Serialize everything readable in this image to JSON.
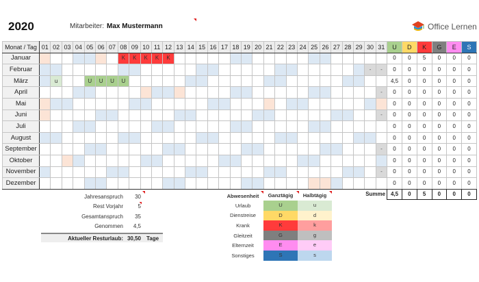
{
  "header": {
    "year": "2020",
    "employee_label": "Mitarbeiter:",
    "employee_name": "Max Mustermann"
  },
  "logo": {
    "name": "Office Lernen",
    "icon": "graduation-cap-icon"
  },
  "colors": {
    "weekend": "#dce8f4",
    "holiday": "#fce4d6",
    "unavailable": "#d9d9d9",
    "U": "#a9d08e",
    "u": "#d9ead3",
    "D": "#ffd966",
    "d": "#fff2cc",
    "K": "#ff3b3b",
    "k": "#ff9e9e",
    "G": "#7f7f7f",
    "g": "#bfbfbf",
    "E": "#ff8cf0",
    "e": "#ffccf7",
    "S": "#2e75b6",
    "s": "#bdd7ee"
  },
  "calendar": {
    "corner_label": "Monat / Tag",
    "days": [
      "01",
      "02",
      "03",
      "04",
      "05",
      "06",
      "07",
      "08",
      "09",
      "10",
      "11",
      "12",
      "13",
      "14",
      "15",
      "16",
      "17",
      "18",
      "19",
      "20",
      "21",
      "22",
      "23",
      "24",
      "25",
      "26",
      "27",
      "28",
      "29",
      "30",
      "31"
    ],
    "summary_headers": [
      "U",
      "D",
      "K",
      "G",
      "E",
      "S"
    ],
    "months": [
      {
        "name": "Januar",
        "weekends": [
          4,
          5,
          11,
          12,
          18,
          19,
          25,
          26
        ],
        "holidays": [
          1,
          6
        ],
        "na": [],
        "entries": {
          "8": "K",
          "9": "K",
          "10": "K",
          "11": "K",
          "12": "K"
        },
        "totals": [
          "0",
          "0",
          "5",
          "0",
          "0",
          "0"
        ]
      },
      {
        "name": "Februar",
        "weekends": [
          1,
          2,
          8,
          9,
          15,
          16,
          22,
          23,
          29
        ],
        "holidays": [],
        "na": [
          30,
          31
        ],
        "entries": {},
        "totals": [
          "0",
          "0",
          "0",
          "0",
          "0",
          "0"
        ]
      },
      {
        "name": "März",
        "weekends": [
          1,
          7,
          8,
          14,
          15,
          21,
          22,
          28,
          29
        ],
        "holidays": [],
        "na": [],
        "entries": {
          "2": "u",
          "5": "U",
          "6": "U",
          "7": "U",
          "8": "U"
        },
        "totals": [
          "4,5",
          "0",
          "0",
          "0",
          "0",
          "0"
        ]
      },
      {
        "name": "April",
        "weekends": [
          4,
          5,
          11,
          12,
          18,
          19,
          25,
          26
        ],
        "holidays": [
          10,
          13
        ],
        "na": [
          31
        ],
        "entries": {},
        "totals": [
          "0",
          "0",
          "0",
          "0",
          "0",
          "0"
        ]
      },
      {
        "name": "Mai",
        "weekends": [
          2,
          3,
          9,
          10,
          16,
          17,
          23,
          24,
          30
        ],
        "holidays": [
          1,
          21,
          31
        ],
        "na": [],
        "entries": {},
        "totals": [
          "0",
          "0",
          "0",
          "0",
          "0",
          "0"
        ]
      },
      {
        "name": "Juni",
        "weekends": [
          6,
          7,
          13,
          14,
          20,
          21,
          27,
          28
        ],
        "holidays": [
          1
        ],
        "na": [
          31
        ],
        "entries": {},
        "totals": [
          "0",
          "0",
          "0",
          "0",
          "0",
          "0"
        ]
      },
      {
        "name": "Juli",
        "weekends": [
          4,
          5,
          11,
          12,
          18,
          19,
          25,
          26
        ],
        "holidays": [],
        "na": [],
        "entries": {},
        "totals": [
          "0",
          "0",
          "0",
          "0",
          "0",
          "0"
        ]
      },
      {
        "name": "August",
        "weekends": [
          1,
          2,
          8,
          9,
          15,
          16,
          22,
          23,
          29,
          30
        ],
        "holidays": [],
        "na": [],
        "entries": {},
        "totals": [
          "0",
          "0",
          "0",
          "0",
          "0",
          "0"
        ]
      },
      {
        "name": "September",
        "weekends": [
          5,
          6,
          12,
          13,
          19,
          20,
          26,
          27
        ],
        "holidays": [],
        "na": [
          31
        ],
        "entries": {},
        "totals": [
          "0",
          "0",
          "0",
          "0",
          "0",
          "0"
        ]
      },
      {
        "name": "Oktober",
        "weekends": [
          4,
          10,
          11,
          17,
          18,
          24,
          25,
          31
        ],
        "holidays": [
          3
        ],
        "na": [],
        "entries": {},
        "totals": [
          "0",
          "0",
          "0",
          "0",
          "0",
          "0"
        ]
      },
      {
        "name": "November",
        "weekends": [
          1,
          7,
          8,
          14,
          15,
          21,
          22,
          28,
          29
        ],
        "holidays": [],
        "na": [
          31
        ],
        "entries": {},
        "totals": [
          "0",
          "0",
          "0",
          "0",
          "0",
          "0"
        ]
      },
      {
        "name": "Dezember",
        "weekends": [
          5,
          6,
          12,
          13,
          19,
          20,
          27
        ],
        "holidays": [
          25,
          26
        ],
        "na": [],
        "entries": {},
        "totals": [
          "0",
          "0",
          "0",
          "0",
          "0",
          "0"
        ]
      }
    ],
    "na_symbol": "-",
    "sum_label": "Summe",
    "sum_totals": [
      "4,5",
      "0",
      "5",
      "0",
      "0",
      "0"
    ]
  },
  "stats": {
    "rows": [
      {
        "label": "Jahresanspruch",
        "value": "30"
      },
      {
        "label": "Rest Vorjahr",
        "value": "5"
      },
      {
        "label": "Gesamtanspruch",
        "value": "35"
      },
      {
        "label": "Genommen",
        "value": "4,5"
      }
    ],
    "total_label": "Aktueller Resturlaub:",
    "total_value": "30,50",
    "total_unit": "Tage"
  },
  "legend": {
    "headers": {
      "type": "Abwesenheit",
      "full": "Ganztägig",
      "half": "Halbtägig"
    },
    "rows": [
      {
        "name": "Urlaub",
        "full": "U",
        "half": "u"
      },
      {
        "name": "Dienstreise",
        "full": "D",
        "half": "d"
      },
      {
        "name": "Krank",
        "full": "K",
        "half": "k"
      },
      {
        "name": "Gleitzeit",
        "full": "G",
        "half": "g"
      },
      {
        "name": "Elternzeit",
        "full": "E",
        "half": "e"
      },
      {
        "name": "Sonstiges",
        "full": "S",
        "half": "s"
      }
    ]
  }
}
